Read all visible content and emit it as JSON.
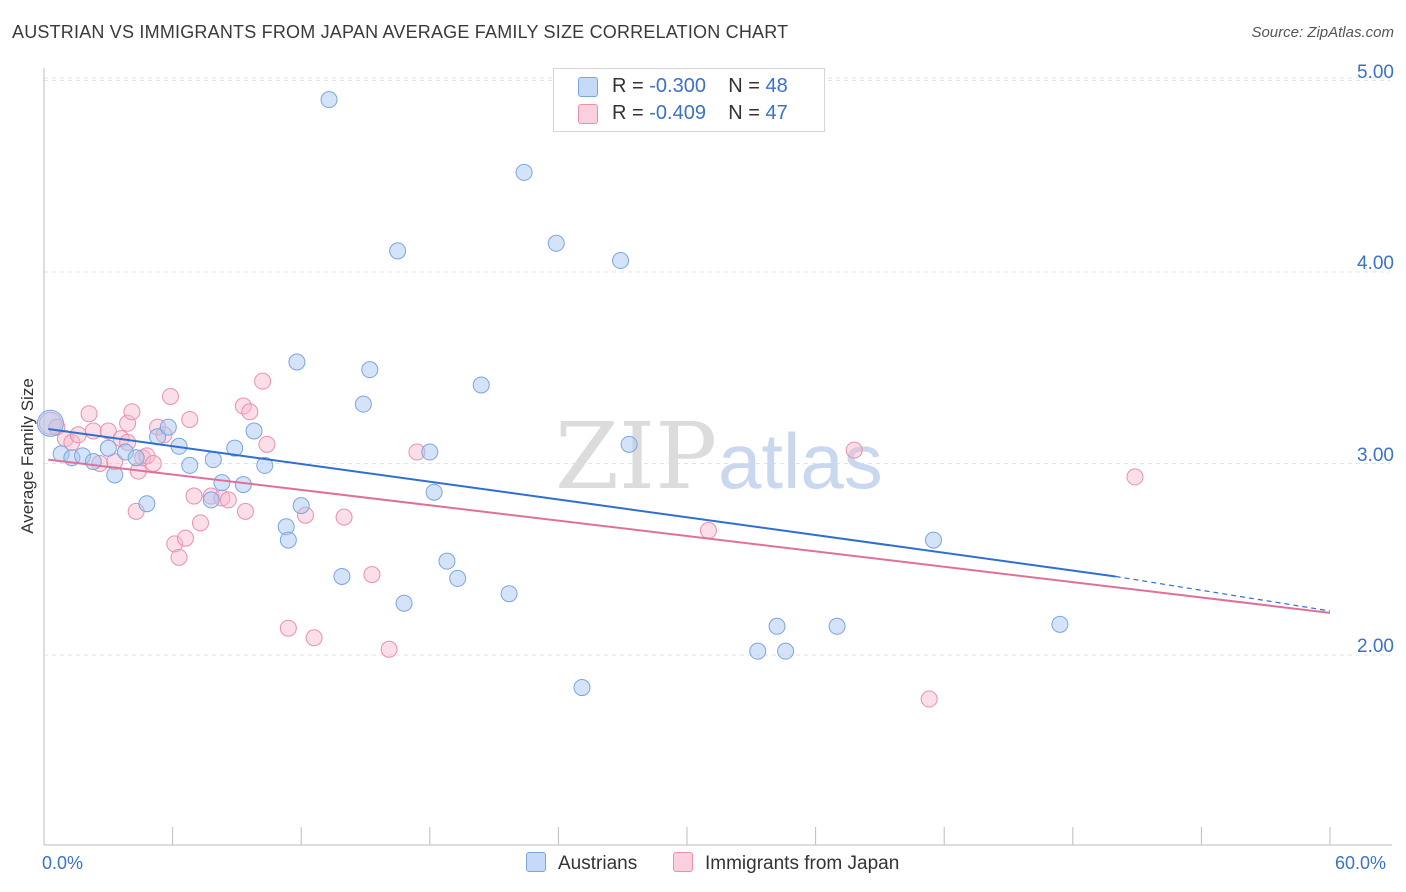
{
  "title": "AUSTRIAN VS IMMIGRANTS FROM JAPAN AVERAGE FAMILY SIZE CORRELATION CHART",
  "source": "Source: ZipAtlas.com",
  "watermark": {
    "zip": "ZIP",
    "atlas": "atlas"
  },
  "legend": {
    "austrians": {
      "r_label": "R =",
      "r_value": "-0.300",
      "n_label": "N =",
      "n_value": "48"
    },
    "japan": {
      "r_label": "R =",
      "r_value": "-0.409",
      "n_label": "N =",
      "n_value": "47"
    }
  },
  "bottom_legend": {
    "austrians": "Austrians",
    "japan": "Immigrants from Japan"
  },
  "colors": {
    "austrians_fill": "#aac8f0",
    "austrians_stroke": "#7aa6df",
    "austrians_line": "#2f6fd0",
    "japan_fill": "#f7b8cb",
    "japan_stroke": "#ec8fad",
    "japan_line": "#e0709a",
    "tick_label": "#3a72c7",
    "grid": "#e2e2e2"
  },
  "chart_data": {
    "type": "scatter",
    "title": "AUSTRIAN VS IMMIGRANTS FROM JAPAN AVERAGE FAMILY SIZE CORRELATION CHART",
    "xlabel": "",
    "ylabel": "Average Family Size",
    "xlim": [
      0,
      60
    ],
    "ylim": [
      1.0,
      5.1
    ],
    "x_tick_labels": {
      "left": "0.0%",
      "right": "60.0%"
    },
    "y_ticks": [
      {
        "value": 2.0,
        "label": "2.00"
      },
      {
        "value": 3.0,
        "label": "3.00"
      },
      {
        "value": 4.0,
        "label": "4.00"
      },
      {
        "value": 5.0,
        "label": "5.00"
      }
    ],
    "grid": true,
    "legend_position": "top-center",
    "series": [
      {
        "name": "Austrians",
        "trend": {
          "x0": 0.2,
          "y0": 3.18,
          "x1": 50.0,
          "y1": 2.41,
          "dash_to_x": 60.0,
          "dash_to_y": 2.23
        },
        "points": [
          [
            0.3,
            3.21
          ],
          [
            0.8,
            3.05
          ],
          [
            1.3,
            3.03
          ],
          [
            1.8,
            3.04
          ],
          [
            2.3,
            3.01
          ],
          [
            3.0,
            3.08
          ],
          [
            3.3,
            2.94
          ],
          [
            3.8,
            3.06
          ],
          [
            4.3,
            3.03
          ],
          [
            4.8,
            2.79
          ],
          [
            5.3,
            3.14
          ],
          [
            5.8,
            3.19
          ],
          [
            6.3,
            3.09
          ],
          [
            6.8,
            2.99
          ],
          [
            7.8,
            2.81
          ],
          [
            7.9,
            3.02
          ],
          [
            8.3,
            2.9
          ],
          [
            8.9,
            3.08
          ],
          [
            9.3,
            2.89
          ],
          [
            9.8,
            3.17
          ],
          [
            10.3,
            2.99
          ],
          [
            11.3,
            2.67
          ],
          [
            11.4,
            2.6
          ],
          [
            12.0,
            2.78
          ],
          [
            11.8,
            3.53
          ],
          [
            13.3,
            4.9
          ],
          [
            13.9,
            2.41
          ],
          [
            14.9,
            3.31
          ],
          [
            15.2,
            3.49
          ],
          [
            16.5,
            4.11
          ],
          [
            16.8,
            2.27
          ],
          [
            18.2,
            2.85
          ],
          [
            18.0,
            3.06
          ],
          [
            18.8,
            2.49
          ],
          [
            19.3,
            2.4
          ],
          [
            20.4,
            3.41
          ],
          [
            21.7,
            2.32
          ],
          [
            22.4,
            4.52
          ],
          [
            23.9,
            4.15
          ],
          [
            25.1,
            1.83
          ],
          [
            26.9,
            4.06
          ],
          [
            27.3,
            3.1
          ],
          [
            33.3,
            2.02
          ],
          [
            34.2,
            2.15
          ],
          [
            34.6,
            2.02
          ],
          [
            37.0,
            2.15
          ],
          [
            41.5,
            2.6
          ],
          [
            47.4,
            2.16
          ]
        ]
      },
      {
        "name": "Immigrants from Japan",
        "trend": {
          "x0": 0.2,
          "y0": 3.02,
          "x1": 60.0,
          "y1": 2.22
        },
        "points": [
          [
            0.3,
            3.21
          ],
          [
            0.6,
            3.19
          ],
          [
            1.0,
            3.13
          ],
          [
            1.3,
            3.11
          ],
          [
            1.6,
            3.15
          ],
          [
            2.1,
            3.26
          ],
          [
            2.3,
            3.17
          ],
          [
            2.6,
            3.0
          ],
          [
            3.0,
            3.17
          ],
          [
            3.3,
            3.01
          ],
          [
            3.6,
            3.13
          ],
          [
            3.9,
            3.11
          ],
          [
            3.9,
            3.21
          ],
          [
            4.1,
            3.27
          ],
          [
            4.3,
            2.75
          ],
          [
            4.4,
            2.96
          ],
          [
            4.6,
            3.03
          ],
          [
            4.8,
            3.04
          ],
          [
            5.1,
            3.0
          ],
          [
            5.3,
            3.19
          ],
          [
            5.6,
            3.15
          ],
          [
            5.9,
            3.35
          ],
          [
            6.1,
            2.58
          ],
          [
            6.3,
            2.51
          ],
          [
            6.6,
            2.61
          ],
          [
            6.8,
            3.23
          ],
          [
            7.0,
            2.83
          ],
          [
            7.3,
            2.69
          ],
          [
            7.8,
            2.83
          ],
          [
            8.3,
            2.82
          ],
          [
            8.6,
            2.81
          ],
          [
            9.3,
            3.3
          ],
          [
            9.6,
            3.27
          ],
          [
            9.4,
            2.75
          ],
          [
            10.2,
            3.43
          ],
          [
            10.4,
            3.1
          ],
          [
            11.4,
            2.14
          ],
          [
            12.2,
            2.73
          ],
          [
            12.6,
            2.09
          ],
          [
            14.0,
            2.72
          ],
          [
            15.3,
            2.42
          ],
          [
            16.1,
            2.03
          ],
          [
            17.4,
            3.06
          ],
          [
            31.0,
            2.65
          ],
          [
            37.8,
            3.07
          ],
          [
            41.3,
            1.77
          ],
          [
            50.9,
            2.93
          ]
        ]
      }
    ]
  }
}
